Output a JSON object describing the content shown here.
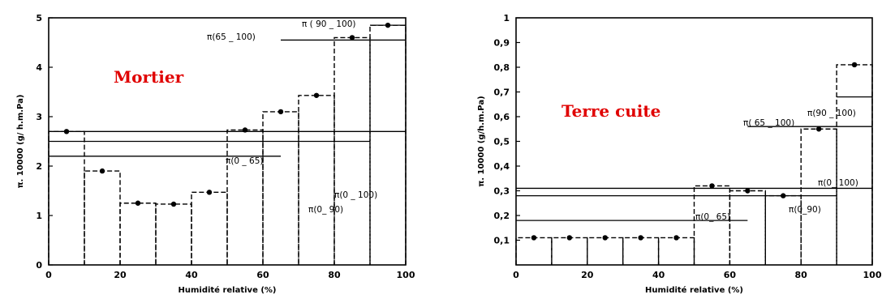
{
  "chart_data": [
    {
      "type": "bar",
      "title": "Mortier",
      "xlabel": "Humidité relative (%)",
      "ylabel": "π. 10000 (g/ h.m.Pa)",
      "xlim": [
        0,
        100
      ],
      "ylim": [
        0,
        5
      ],
      "xticks": [
        "0",
        "20",
        "40",
        "60",
        "80",
        "100"
      ],
      "yticks": [
        "0",
        "1",
        "2",
        "3",
        "4",
        "5"
      ],
      "grid": false,
      "bins": [
        {
          "x0": 0,
          "x1": 10,
          "value": 2.7
        },
        {
          "x0": 10,
          "x1": 20,
          "value": 1.9
        },
        {
          "x0": 20,
          "x1": 30,
          "value": 1.25
        },
        {
          "x0": 30,
          "x1": 40,
          "value": 1.23
        },
        {
          "x0": 40,
          "x1": 50,
          "value": 1.47
        },
        {
          "x0": 50,
          "x1": 60,
          "value": 2.73
        },
        {
          "x0": 60,
          "x1": 70,
          "value": 3.1
        },
        {
          "x0": 70,
          "x1": 80,
          "value": 3.43
        },
        {
          "x0": 80,
          "x1": 90,
          "value": 4.6
        },
        {
          "x0": 90,
          "x1": 100,
          "value": 4.85
        }
      ],
      "reference_lines": [
        {
          "label": "π(0 _ 100)",
          "x0": 0,
          "x1": 100,
          "value": 2.7
        },
        {
          "label": "π(0_ 90)",
          "x0": 0,
          "x1": 90,
          "value": 2.5
        },
        {
          "label": "π(0 _ 65)",
          "x0": 0,
          "x1": 65,
          "value": 2.2
        },
        {
          "label": "π(65 _ 100)",
          "x0": 65,
          "x1": 100,
          "value": 4.55
        },
        {
          "label": "π ( 90 _ 100)",
          "x0": 90,
          "x1": 100,
          "value": 4.85
        }
      ]
    },
    {
      "type": "bar",
      "title": "Terre cuite",
      "xlabel": "Humidité relative (%)",
      "ylabel": "π. 10000 (g/h.m.Pa)",
      "xlim": [
        0,
        100
      ],
      "ylim": [
        0,
        1
      ],
      "xticks": [
        "0",
        "20",
        "40",
        "60",
        "80",
        "100"
      ],
      "yticks": [
        "0,1",
        "0,2",
        "0,3",
        "0,4",
        "0,5",
        "0,6",
        "0,7",
        "0,8",
        "0,9",
        "1"
      ],
      "grid": false,
      "bins": [
        {
          "x0": 0,
          "x1": 10,
          "value": 0.11
        },
        {
          "x0": 10,
          "x1": 20,
          "value": 0.11
        },
        {
          "x0": 20,
          "x1": 30,
          "value": 0.11
        },
        {
          "x0": 30,
          "x1": 40,
          "value": 0.11
        },
        {
          "x0": 40,
          "x1": 50,
          "value": 0.11
        },
        {
          "x0": 50,
          "x1": 60,
          "value": 0.32
        },
        {
          "x0": 60,
          "x1": 70,
          "value": 0.3
        },
        {
          "x0": 70,
          "x1": 80,
          "value": 0.28
        },
        {
          "x0": 80,
          "x1": 90,
          "value": 0.55
        },
        {
          "x0": 90,
          "x1": 100,
          "value": 0.81
        }
      ],
      "reference_lines": [
        {
          "label": "π(0_ 100)",
          "x0": 0,
          "x1": 100,
          "value": 0.31
        },
        {
          "label": "π(0_90)",
          "x0": 0,
          "x1": 90,
          "value": 0.28
        },
        {
          "label": "π(0_ 65)",
          "x0": 0,
          "x1": 65,
          "value": 0.18
        },
        {
          "label": "π( 65 _ 100)",
          "x0": 65,
          "x1": 100,
          "value": 0.56
        },
        {
          "label": "π(90 _ 100)",
          "x0": 90,
          "x1": 100,
          "value": 0.68
        }
      ]
    }
  ]
}
